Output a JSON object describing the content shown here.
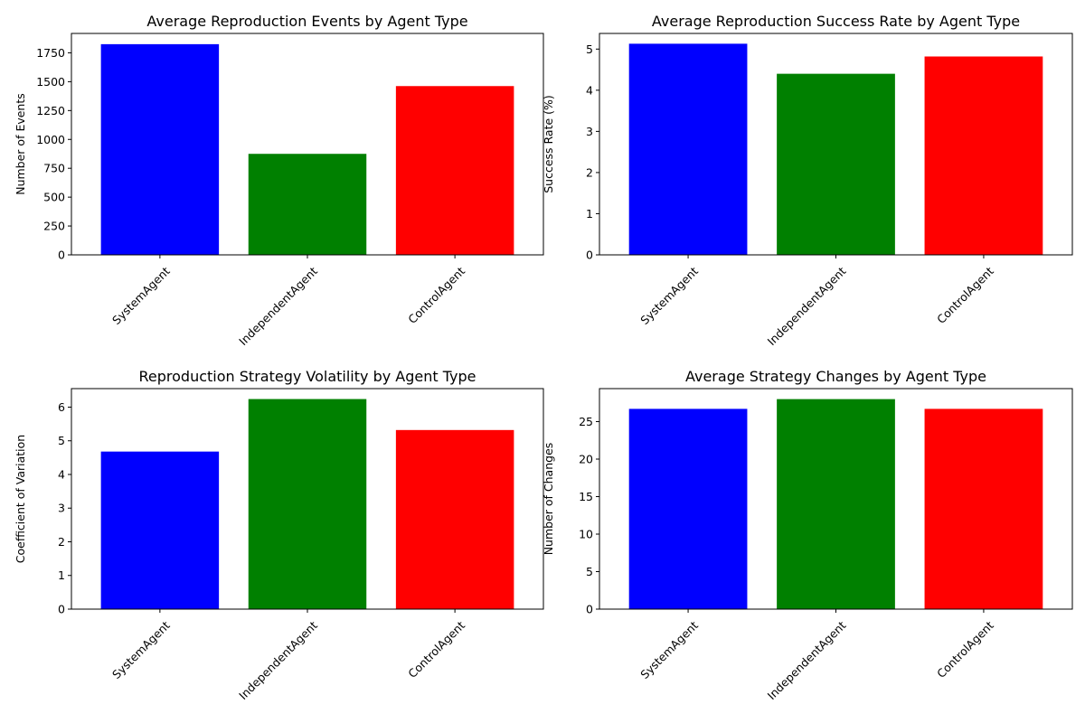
{
  "chart_data": [
    {
      "type": "bar",
      "title": "Average Reproduction Events by Agent Type",
      "xlabel": "",
      "ylabel": "Number of Events",
      "categories": [
        "SystemAgent",
        "IndependentAgent",
        "ControlAgent"
      ],
      "values": [
        1825,
        875,
        1462
      ],
      "colors": [
        "#0000ff",
        "#008000",
        "#ff0000"
      ],
      "ylim": [
        0,
        1918
      ],
      "yticks": [
        0,
        250,
        500,
        750,
        1000,
        1250,
        1500,
        1750
      ],
      "xtick_rotation": 45,
      "grid": false
    },
    {
      "type": "bar",
      "title": "Average Reproduction Success Rate by Agent Type",
      "xlabel": "",
      "ylabel": "Success Rate (%)",
      "categories": [
        "SystemAgent",
        "IndependentAgent",
        "ControlAgent"
      ],
      "values": [
        5.13,
        4.4,
        4.82
      ],
      "colors": [
        "#0000ff",
        "#008000",
        "#ff0000"
      ],
      "ylim": [
        0,
        5.38
      ],
      "yticks": [
        0,
        1,
        2,
        3,
        4,
        5
      ],
      "xtick_rotation": 45,
      "grid": false
    },
    {
      "type": "bar",
      "title": "Reproduction Strategy Volatility by Agent Type",
      "xlabel": "",
      "ylabel": "Coefficient of Variation",
      "categories": [
        "SystemAgent",
        "IndependentAgent",
        "ControlAgent"
      ],
      "values": [
        4.68,
        6.24,
        5.32
      ],
      "colors": [
        "#0000ff",
        "#008000",
        "#ff0000"
      ],
      "ylim": [
        0,
        6.55
      ],
      "yticks": [
        0,
        1,
        2,
        3,
        4,
        5,
        6
      ],
      "xtick_rotation": 45,
      "grid": false
    },
    {
      "type": "bar",
      "title": "Average Strategy Changes by Agent Type",
      "xlabel": "",
      "ylabel": "Number of Changes",
      "categories": [
        "SystemAgent",
        "IndependentAgent",
        "ControlAgent"
      ],
      "values": [
        26.7,
        28.0,
        26.7
      ],
      "colors": [
        "#0000ff",
        "#008000",
        "#ff0000"
      ],
      "ylim": [
        0,
        29.4
      ],
      "yticks": [
        0,
        5,
        10,
        15,
        20,
        25
      ],
      "xtick_rotation": 45,
      "grid": false
    }
  ]
}
